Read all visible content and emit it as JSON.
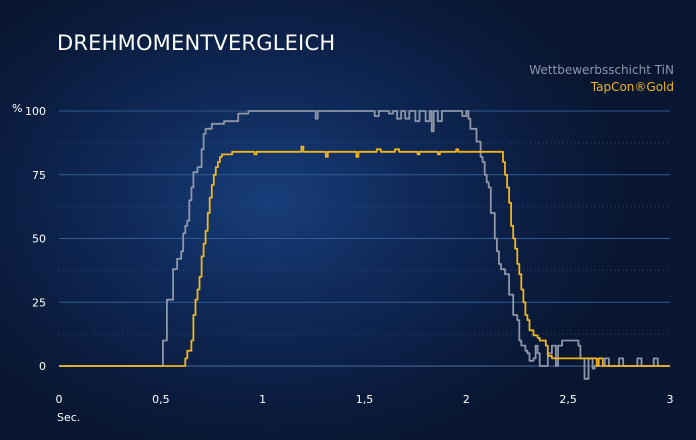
{
  "page": {
    "title": "DREHMOMENTVERGLEICH",
    "background": "#0b1d40"
  },
  "chart_data": {
    "type": "line",
    "title": "DREHMOMENTVERGLEICH",
    "xlabel": "Sec.",
    "ylabel": "%",
    "xlim": [
      0,
      3
    ],
    "ylim": [
      0,
      100
    ],
    "x_ticks": [
      {
        "value": 0,
        "label": "0"
      },
      {
        "value": 0.5,
        "label": "0,5"
      },
      {
        "value": 1,
        "label": "1"
      },
      {
        "value": 1.5,
        "label": "1,5"
      },
      {
        "value": 2,
        "label": "2"
      },
      {
        "value": 2.5,
        "label": "2,5"
      },
      {
        "value": 3,
        "label": "3"
      }
    ],
    "y_ticks": [
      {
        "value": 0,
        "label": "0"
      },
      {
        "value": 25,
        "label": "25"
      },
      {
        "value": 50,
        "label": "50"
      },
      {
        "value": 75,
        "label": "75"
      },
      {
        "value": 100,
        "label": "100"
      }
    ],
    "grid": "horizontal dotted",
    "legend_position": "top-right",
    "series": [
      {
        "name": "Wettbewerbsschicht TiN",
        "color": "#8f96a8",
        "points": [
          [
            0,
            0
          ],
          [
            0.49,
            0
          ],
          [
            0.5,
            0
          ],
          [
            0.51,
            10
          ],
          [
            0.53,
            26
          ],
          [
            0.55,
            26
          ],
          [
            0.56,
            38
          ],
          [
            0.58,
            42
          ],
          [
            0.6,
            45
          ],
          [
            0.61,
            52
          ],
          [
            0.62,
            55
          ],
          [
            0.63,
            57
          ],
          [
            0.64,
            65
          ],
          [
            0.65,
            70
          ],
          [
            0.66,
            76
          ],
          [
            0.68,
            78
          ],
          [
            0.7,
            85
          ],
          [
            0.71,
            91
          ],
          [
            0.72,
            93
          ],
          [
            0.74,
            93
          ],
          [
            0.75,
            95
          ],
          [
            0.8,
            95
          ],
          [
            0.81,
            96
          ],
          [
            0.86,
            96
          ],
          [
            0.88,
            99
          ],
          [
            0.92,
            99
          ],
          [
            0.93,
            100
          ],
          [
            1.25,
            100
          ],
          [
            1.26,
            97
          ],
          [
            1.27,
            100
          ],
          [
            1.54,
            100
          ],
          [
            1.55,
            98
          ],
          [
            1.57,
            100
          ],
          [
            1.62,
            99
          ],
          [
            1.64,
            100
          ],
          [
            1.66,
            97
          ],
          [
            1.68,
            100
          ],
          [
            1.7,
            97
          ],
          [
            1.72,
            100
          ],
          [
            1.75,
            96
          ],
          [
            1.77,
            100
          ],
          [
            1.8,
            96
          ],
          [
            1.82,
            100
          ],
          [
            1.83,
            92
          ],
          [
            1.84,
            100
          ],
          [
            1.86,
            96
          ],
          [
            1.88,
            100
          ],
          [
            1.97,
            100
          ],
          [
            1.98,
            98
          ],
          [
            2.0,
            100
          ],
          [
            2.01,
            97
          ],
          [
            2.02,
            93
          ],
          [
            2.04,
            93
          ],
          [
            2.05,
            88
          ],
          [
            2.07,
            82
          ],
          [
            2.08,
            80
          ],
          [
            2.09,
            75
          ],
          [
            2.1,
            72
          ],
          [
            2.11,
            70
          ],
          [
            2.12,
            60
          ],
          [
            2.14,
            50
          ],
          [
            2.15,
            45
          ],
          [
            2.16,
            40
          ],
          [
            2.17,
            38
          ],
          [
            2.19,
            36
          ],
          [
            2.21,
            28
          ],
          [
            2.23,
            20
          ],
          [
            2.25,
            18
          ],
          [
            2.26,
            10
          ],
          [
            2.27,
            8
          ],
          [
            2.29,
            6
          ],
          [
            2.3,
            5
          ],
          [
            2.31,
            2
          ],
          [
            2.33,
            3
          ],
          [
            2.34,
            8
          ],
          [
            2.35,
            5
          ],
          [
            2.36,
            0
          ],
          [
            2.38,
            0
          ],
          [
            2.39,
            0
          ],
          [
            2.4,
            5
          ],
          [
            2.42,
            8
          ],
          [
            2.44,
            0
          ],
          [
            2.45,
            8
          ],
          [
            2.47,
            10
          ],
          [
            2.5,
            10
          ],
          [
            2.53,
            10
          ],
          [
            2.55,
            8
          ],
          [
            2.56,
            3
          ],
          [
            2.58,
            -5
          ],
          [
            2.6,
            3
          ],
          [
            2.62,
            -1
          ],
          [
            2.63,
            0
          ],
          [
            2.66,
            0
          ],
          [
            2.68,
            3
          ],
          [
            2.7,
            0
          ],
          [
            2.73,
            0
          ],
          [
            2.75,
            3
          ],
          [
            2.77,
            0
          ],
          [
            2.82,
            0
          ],
          [
            2.84,
            3
          ],
          [
            2.86,
            0
          ],
          [
            2.9,
            0
          ],
          [
            2.92,
            3
          ],
          [
            2.94,
            0
          ],
          [
            3.0,
            0
          ]
        ]
      },
      {
        "name": "TapCon®Gold",
        "color": "#f2b51d",
        "points": [
          [
            0,
            0
          ],
          [
            0.6,
            0
          ],
          [
            0.62,
            3
          ],
          [
            0.63,
            6
          ],
          [
            0.65,
            10
          ],
          [
            0.66,
            20
          ],
          [
            0.67,
            26
          ],
          [
            0.68,
            30
          ],
          [
            0.69,
            35
          ],
          [
            0.7,
            43
          ],
          [
            0.71,
            48
          ],
          [
            0.72,
            53
          ],
          [
            0.73,
            60
          ],
          [
            0.74,
            66
          ],
          [
            0.75,
            71
          ],
          [
            0.76,
            75
          ],
          [
            0.77,
            78
          ],
          [
            0.78,
            80
          ],
          [
            0.79,
            82
          ],
          [
            0.8,
            83
          ],
          [
            0.85,
            84
          ],
          [
            0.95,
            84
          ],
          [
            0.96,
            83
          ],
          [
            0.97,
            84
          ],
          [
            1.18,
            84
          ],
          [
            1.19,
            86
          ],
          [
            1.2,
            84
          ],
          [
            1.3,
            84
          ],
          [
            1.31,
            82
          ],
          [
            1.32,
            84
          ],
          [
            1.45,
            84
          ],
          [
            1.46,
            82
          ],
          [
            1.47,
            84
          ],
          [
            1.55,
            84
          ],
          [
            1.56,
            85
          ],
          [
            1.58,
            84
          ],
          [
            1.64,
            84
          ],
          [
            1.65,
            85
          ],
          [
            1.67,
            84
          ],
          [
            1.75,
            84
          ],
          [
            1.76,
            83
          ],
          [
            1.77,
            84
          ],
          [
            1.85,
            84
          ],
          [
            1.86,
            83
          ],
          [
            1.87,
            84
          ],
          [
            1.94,
            84
          ],
          [
            1.95,
            85
          ],
          [
            1.96,
            84
          ],
          [
            2.17,
            84
          ],
          [
            2.18,
            80
          ],
          [
            2.19,
            75
          ],
          [
            2.2,
            70
          ],
          [
            2.21,
            64
          ],
          [
            2.22,
            55
          ],
          [
            2.23,
            50
          ],
          [
            2.24,
            46
          ],
          [
            2.25,
            40
          ],
          [
            2.26,
            36
          ],
          [
            2.27,
            30
          ],
          [
            2.28,
            25
          ],
          [
            2.29,
            20
          ],
          [
            2.3,
            18
          ],
          [
            2.31,
            14
          ],
          [
            2.33,
            12
          ],
          [
            2.35,
            11
          ],
          [
            2.36,
            10
          ],
          [
            2.38,
            10
          ],
          [
            2.39,
            8
          ],
          [
            2.4,
            4
          ],
          [
            2.41,
            4
          ],
          [
            2.42,
            3
          ],
          [
            2.5,
            3
          ],
          [
            2.56,
            3
          ],
          [
            2.6,
            3
          ],
          [
            2.63,
            3
          ],
          [
            2.64,
            0
          ],
          [
            2.65,
            3
          ],
          [
            2.67,
            0
          ],
          [
            2.68,
            0
          ],
          [
            3.0,
            0
          ]
        ]
      }
    ]
  }
}
